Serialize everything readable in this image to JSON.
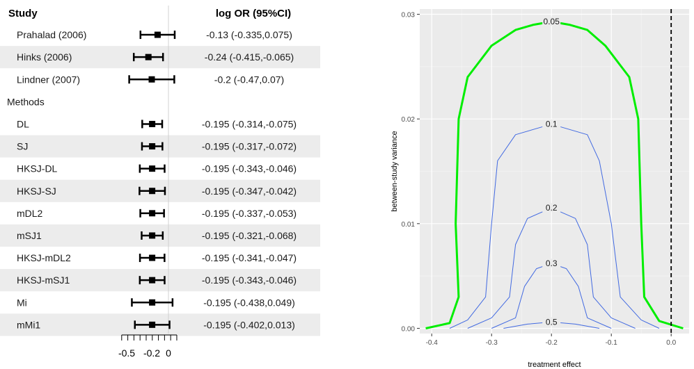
{
  "forest": {
    "header": {
      "study": "Study",
      "estimate": "log OR (95%CI)"
    },
    "rows": [
      {
        "label": "Prahalad (2006)",
        "est": -0.13,
        "lo": -0.335,
        "hi": 0.075,
        "text": "-0.13 (-0.335,0.075)",
        "shaded": false,
        "indent": true
      },
      {
        "label": "Hinks (2006)",
        "est": -0.24,
        "lo": -0.415,
        "hi": -0.065,
        "text": "-0.24 (-0.415,-0.065)",
        "shaded": true,
        "indent": true
      },
      {
        "label": "Lindner (2007)",
        "est": -0.2,
        "lo": -0.47,
        "hi": 0.07,
        "text": "-0.2 (-0.47,0.07)",
        "shaded": false,
        "indent": true
      },
      {
        "label": "Methods",
        "header": true
      },
      {
        "label": "DL",
        "est": -0.195,
        "lo": -0.314,
        "hi": -0.075,
        "text": "-0.195 (-0.314,-0.075)",
        "shaded": false,
        "indent": true
      },
      {
        "label": "SJ",
        "est": -0.195,
        "lo": -0.317,
        "hi": -0.072,
        "text": "-0.195 (-0.317,-0.072)",
        "shaded": true,
        "indent": true
      },
      {
        "label": "HKSJ-DL",
        "est": -0.195,
        "lo": -0.343,
        "hi": -0.046,
        "text": "-0.195 (-0.343,-0.046)",
        "shaded": false,
        "indent": true
      },
      {
        "label": "HKSJ-SJ",
        "est": -0.195,
        "lo": -0.347,
        "hi": -0.042,
        "text": "-0.195 (-0.347,-0.042)",
        "shaded": true,
        "indent": true
      },
      {
        "label": "mDL2",
        "est": -0.195,
        "lo": -0.337,
        "hi": -0.053,
        "text": "-0.195 (-0.337,-0.053)",
        "shaded": false,
        "indent": true
      },
      {
        "label": "mSJ1",
        "est": -0.195,
        "lo": -0.321,
        "hi": -0.068,
        "text": "-0.195 (-0.321,-0.068)",
        "shaded": true,
        "indent": true
      },
      {
        "label": "HKSJ-mDL2",
        "est": -0.195,
        "lo": -0.341,
        "hi": -0.047,
        "text": "-0.195 (-0.341,-0.047)",
        "shaded": false,
        "indent": true
      },
      {
        "label": "HKSJ-mSJ1",
        "est": -0.195,
        "lo": -0.343,
        "hi": -0.046,
        "text": "-0.195 (-0.343,-0.046)",
        "shaded": true,
        "indent": true
      },
      {
        "label": "Mi",
        "est": -0.195,
        "lo": -0.438,
        "hi": 0.049,
        "text": "-0.195 (-0.438,0.049)",
        "shaded": false,
        "indent": true
      },
      {
        "label": "mMi1",
        "est": -0.195,
        "lo": -0.402,
        "hi": 0.013,
        "text": "-0.195 (-0.402,0.013)",
        "shaded": true,
        "indent": true
      }
    ],
    "axis": {
      "ticks": [
        -0.5,
        -0.2,
        0
      ],
      "tick_labels": [
        "-0.5",
        "-0.2",
        "0"
      ],
      "xlim": [
        -0.5,
        0.1
      ]
    }
  },
  "chart_data": {
    "type": "line",
    "subtype": "contour",
    "xlabel": "treatment effect",
    "ylabel": "between-study variance",
    "xlim": [
      -0.42,
      0.03
    ],
    "ylim": [
      -0.0005,
      0.0305
    ],
    "x_ticks": [
      -0.4,
      -0.3,
      -0.2,
      -0.1,
      0.0
    ],
    "x_tick_labels": [
      "-0.4",
      "-0.3",
      "-0.2",
      "-0.1",
      "0.0"
    ],
    "y_ticks": [
      0.0,
      0.01,
      0.02,
      0.03
    ],
    "y_tick_labels": [
      "0.00",
      "0.01",
      "0.02",
      "0.03"
    ],
    "grid": true,
    "reference_line": {
      "x": 0.0,
      "style": "dashed",
      "color": "#000000"
    },
    "series": [
      {
        "level_label": "0.05",
        "color": "#00ee00",
        "width": 3,
        "points": [
          [
            -0.41,
            0.0
          ],
          [
            -0.37,
            0.0005
          ],
          [
            -0.355,
            0.003
          ],
          [
            -0.36,
            0.01
          ],
          [
            -0.355,
            0.02
          ],
          [
            -0.34,
            0.024
          ],
          [
            -0.3,
            0.027
          ],
          [
            -0.26,
            0.0285
          ],
          [
            -0.23,
            0.029
          ],
          [
            -0.2,
            0.0293
          ],
          [
            -0.17,
            0.029
          ],
          [
            -0.14,
            0.0285
          ],
          [
            -0.11,
            0.027
          ],
          [
            -0.07,
            0.024
          ],
          [
            -0.055,
            0.02
          ],
          [
            -0.05,
            0.01
          ],
          [
            -0.045,
            0.003
          ],
          [
            -0.02,
            0.0007
          ],
          [
            0.02,
            0.0
          ]
        ]
      },
      {
        "level_label": "0.1",
        "color": "#4169e1",
        "width": 1,
        "points": [
          [
            -0.37,
            0.0
          ],
          [
            -0.34,
            0.0008
          ],
          [
            -0.31,
            0.003
          ],
          [
            -0.3,
            0.01
          ],
          [
            -0.29,
            0.016
          ],
          [
            -0.26,
            0.0185
          ],
          [
            -0.2,
            0.0195
          ],
          [
            -0.14,
            0.0185
          ],
          [
            -0.12,
            0.016
          ],
          [
            -0.1,
            0.01
          ],
          [
            -0.085,
            0.003
          ],
          [
            -0.05,
            0.0008
          ],
          [
            -0.02,
            0.0
          ]
        ]
      },
      {
        "level_label": "0.2",
        "color": "#4169e1",
        "width": 1,
        "points": [
          [
            -0.34,
            0.0
          ],
          [
            -0.3,
            0.001
          ],
          [
            -0.27,
            0.003
          ],
          [
            -0.26,
            0.008
          ],
          [
            -0.24,
            0.0105
          ],
          [
            -0.2,
            0.0115
          ],
          [
            -0.16,
            0.0105
          ],
          [
            -0.14,
            0.008
          ],
          [
            -0.13,
            0.003
          ],
          [
            -0.1,
            0.001
          ],
          [
            -0.06,
            0.0
          ]
        ]
      },
      {
        "level_label": "0.3",
        "color": "#4169e1",
        "width": 1,
        "points": [
          [
            -0.3,
            0.0
          ],
          [
            -0.26,
            0.001
          ],
          [
            -0.245,
            0.004
          ],
          [
            -0.225,
            0.0057
          ],
          [
            -0.2,
            0.0062
          ],
          [
            -0.175,
            0.0057
          ],
          [
            -0.155,
            0.004
          ],
          [
            -0.14,
            0.001
          ],
          [
            -0.1,
            0.0
          ]
        ]
      },
      {
        "level_label": "0.5",
        "color": "#4169e1",
        "width": 1,
        "points": [
          [
            -0.28,
            0.0
          ],
          [
            -0.24,
            0.0004
          ],
          [
            -0.2,
            0.0006
          ],
          [
            -0.16,
            0.0004
          ],
          [
            -0.12,
            0.0
          ]
        ]
      }
    ]
  }
}
